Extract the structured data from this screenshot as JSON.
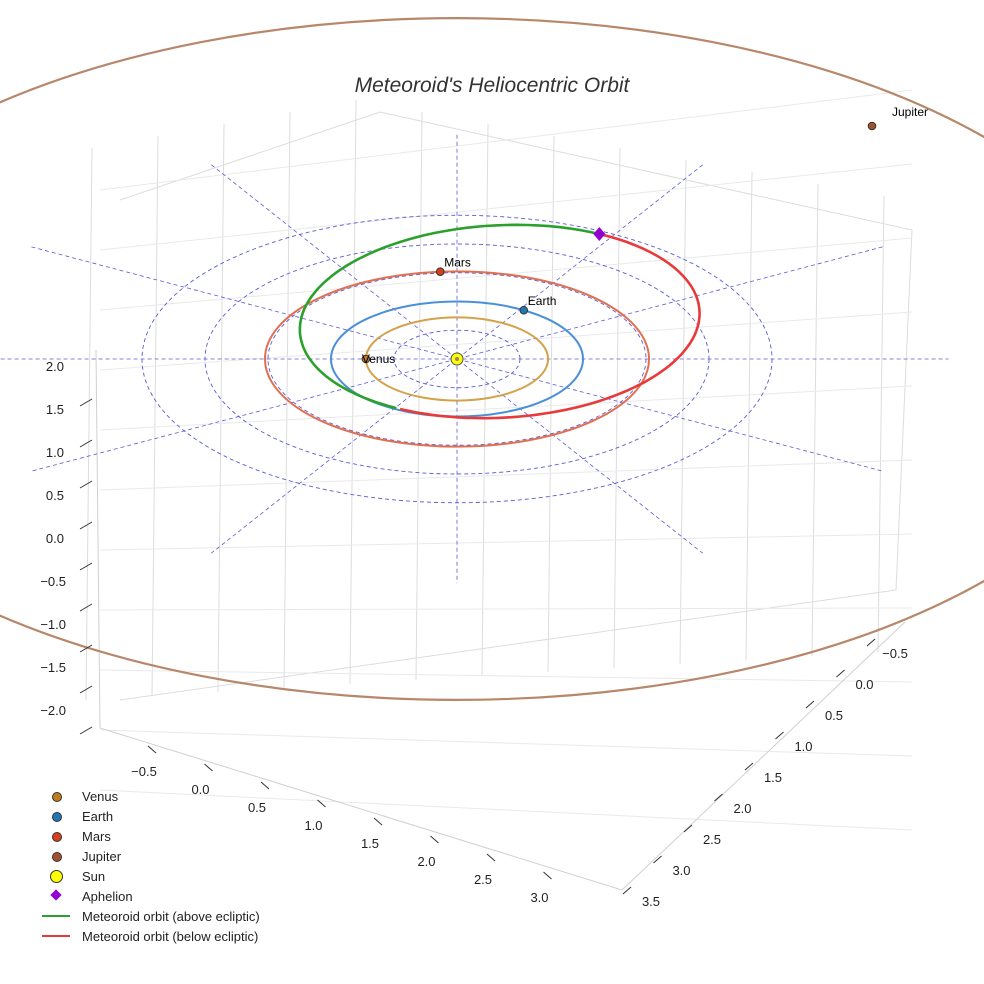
{
  "chart_data": {
    "type": "line3d",
    "title": "Meteoroid's Heliocentric Orbit",
    "x_ticks": [
      "−0.5",
      "0.0",
      "0.5",
      "1.0",
      "1.5",
      "2.0",
      "2.5",
      "3.0"
    ],
    "y_ticks": [
      "−0.5",
      "0.0",
      "0.5",
      "1.0",
      "1.5",
      "2.0",
      "2.5",
      "3.0",
      "3.5"
    ],
    "z_ticks": [
      "2.0",
      "1.5",
      "1.0",
      "0.5",
      "0.0",
      "−0.5",
      "−1.0",
      "−1.5",
      "−2.0"
    ],
    "reference_circle_radii_au": [
      0.5,
      1.0,
      1.5,
      2.0,
      2.5
    ],
    "planets": [
      {
        "name": "Venus",
        "semi_major_axis_au": 0.723,
        "color": "#d4a24a",
        "marker_color": "#c27a1e"
      },
      {
        "name": "Earth",
        "semi_major_axis_au": 1.0,
        "color": "#4a90d9",
        "marker_color": "#1f77b4"
      },
      {
        "name": "Mars",
        "semi_major_axis_au": 1.524,
        "color": "#e07050",
        "marker_color": "#d6401a"
      },
      {
        "name": "Jupiter",
        "semi_major_axis_au": 5.2,
        "color": "#b8876a",
        "marker_color": "#a0522d"
      }
    ],
    "sun": {
      "name": "Sun",
      "color": "#ffff00"
    },
    "aphelion": {
      "name": "Aphelion",
      "color": "#9400d3"
    },
    "meteoroid_orbit": {
      "perihelion_au": 0.98,
      "aphelion_au": 2.45,
      "series": [
        {
          "name": "Meteoroid orbit (above ecliptic)",
          "color": "#2ca02c"
        },
        {
          "name": "Meteoroid orbit (below ecliptic)",
          "color": "#e8393b"
        }
      ]
    },
    "legend": [
      {
        "label": "Venus",
        "kind": "dot",
        "color": "#c27a1e"
      },
      {
        "label": "Earth",
        "kind": "dot",
        "color": "#1f77b4"
      },
      {
        "label": "Mars",
        "kind": "dot",
        "color": "#d6401a"
      },
      {
        "label": "Jupiter",
        "kind": "dot",
        "color": "#a0522d"
      },
      {
        "label": "Sun",
        "kind": "big",
        "color": "#ffff00"
      },
      {
        "label": "Aphelion",
        "kind": "diamond",
        "color": "#9400d3"
      },
      {
        "label": "Meteoroid orbit (above ecliptic)",
        "kind": "line",
        "color": "#2ca02c"
      },
      {
        "label": "Meteoroid orbit (below ecliptic)",
        "kind": "line",
        "color": "#e8393b"
      }
    ]
  }
}
